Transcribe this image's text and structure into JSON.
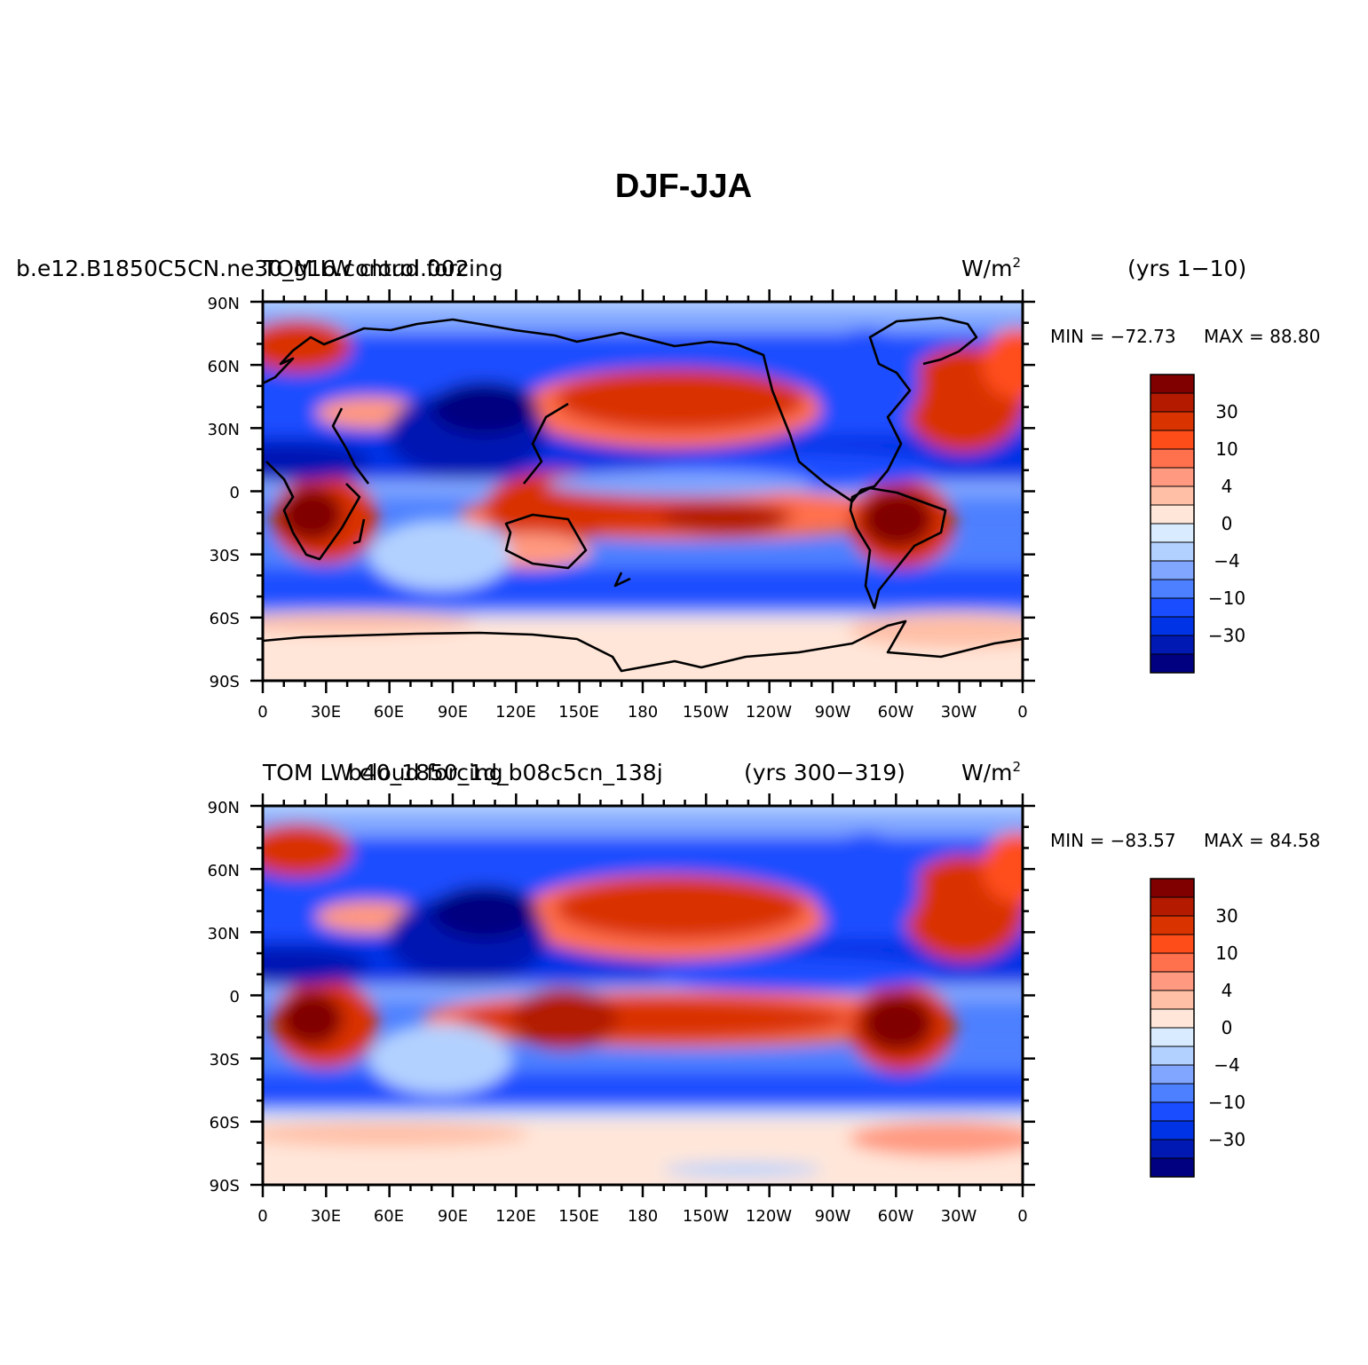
{
  "main_title": "DJF-JJA",
  "contour_levels": [
    -40,
    -30,
    -20,
    -15,
    -10,
    -6,
    -4,
    -2,
    0,
    2,
    4,
    6,
    10,
    15,
    20,
    30,
    40
  ],
  "colorbar": {
    "labels": [
      "30",
      "10",
      "4",
      "0",
      "−4",
      "−10",
      "−30"
    ],
    "colors": [
      "#800000",
      "#b31a00",
      "#d93300",
      "#ff4d1a",
      "#ff704d",
      "#ff9980",
      "#ffbfa6",
      "#ffe6d9",
      "#d9ebff",
      "#b3d1ff",
      "#80a6ff",
      "#4d80ff",
      "#1a4dff",
      "#0033e6",
      "#0019b3",
      "#000080"
    ]
  },
  "x_ticks": [
    "0",
    "30E",
    "60E",
    "90E",
    "120E",
    "150E",
    "180",
    "150W",
    "120W",
    "90W",
    "60W",
    "30W",
    "0"
  ],
  "y_ticks": [
    "90N",
    "60N",
    "30N",
    "0",
    "30S",
    "60S",
    "90S"
  ],
  "panels": [
    {
      "case_name": "b.e12.B1850C5CN.ne30_g16.control.002",
      "variable": "TOM LW cloud forcing",
      "years": "(yrs 1−10)",
      "units_base": "W/m",
      "units_exp": "2",
      "min_label": "MIN = −72.73",
      "max_label": "MAX =   88.80",
      "min": -72.73,
      "max": 88.8
    },
    {
      "case_name": "b40_1850_1d_b08c5cn_138j",
      "variable": "TOM LW cloud forcing",
      "years": "(yrs 300−319)",
      "units_base": "W/m",
      "units_exp": "2",
      "min_label": "MIN = −83.57",
      "max_label": "MAX =   84.58",
      "min": -83.57,
      "max": 84.58
    }
  ]
}
